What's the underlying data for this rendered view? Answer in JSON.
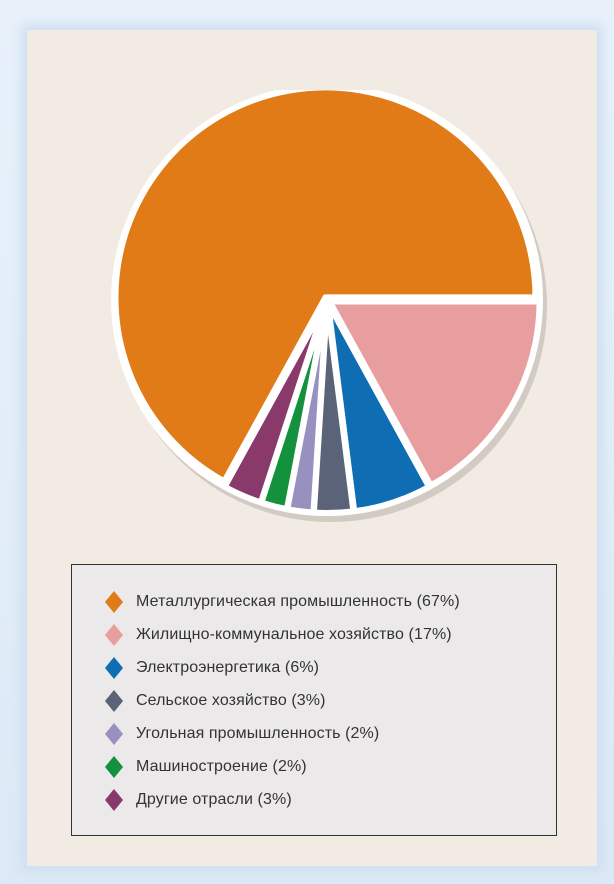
{
  "chart_data": {
    "type": "pie",
    "title": "",
    "slices": [
      {
        "label": "Металлургическая промышленность (67%)",
        "value": 67,
        "color": "#e07b18"
      },
      {
        "label": "Жилищно-коммунальное хозяйство (17%)",
        "value": 17,
        "color": "#e89e9e"
      },
      {
        "label": "Электроэнергетика (6%)",
        "value": 6,
        "color": "#0f6db4"
      },
      {
        "label": "Сельское хозяйство (3%)",
        "value": 3,
        "color": "#5a6378"
      },
      {
        "label": "Угольная промышленность (2%)",
        "value": 2,
        "color": "#9891c0"
      },
      {
        "label": "Машиностроение (2%)",
        "value": 2,
        "color": "#14913c"
      },
      {
        "label": "Другие отрасли (3%)",
        "value": 3,
        "color": "#8a3a6a"
      }
    ],
    "legend_position": "bottom"
  }
}
